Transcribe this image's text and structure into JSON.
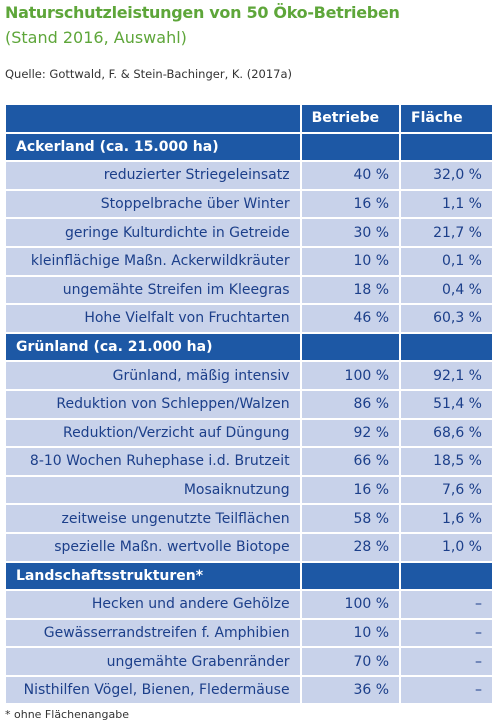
{
  "header": {
    "title": "Naturschutzleistungen von 50 Öko-Betrieben",
    "subtitle": "(Stand 2016, Auswahl)",
    "source": "Quelle: Gottwald, F. & Stein-Bachinger, K. (2017a)"
  },
  "table": {
    "columns": [
      "Betriebe",
      "Fläche"
    ],
    "sections": [
      {
        "title": "Ackerland (ca. 15.000 ha)",
        "rows": [
          [
            "reduzierter Striegeleinsatz",
            "40 %",
            "32,0 %"
          ],
          [
            "Stoppelbrache über Winter",
            "16 %",
            "1,1 %"
          ],
          [
            "geringe Kulturdichte in Getreide",
            "30 %",
            "21,7 %"
          ],
          [
            "kleinflächige Maßn. Ackerwildkräuter",
            "10 %",
            "0,1 %"
          ],
          [
            "ungemähte Streifen im Kleegras",
            "18 %",
            "0,4 %"
          ],
          [
            "Hohe Vielfalt von Fruchtarten",
            "46 %",
            "60,3 %"
          ]
        ]
      },
      {
        "title": "Grünland (ca. 21.000 ha)",
        "rows": [
          [
            "Grünland, mäßig intensiv",
            "100 %",
            "92,1 %"
          ],
          [
            "Reduktion von Schleppen/Walzen",
            "86 %",
            "51,4 %"
          ],
          [
            "Reduktion/Verzicht auf Düngung",
            "92 %",
            "68,6 %"
          ],
          [
            "8-10 Wochen Ruhephase i.d. Brutzeit",
            "66 %",
            "18,5 %"
          ],
          [
            "Mosaiknutzung",
            "16 %",
            "7,6 %"
          ],
          [
            "zeitweise ungenutzte Teilflächen",
            "58 %",
            "1,6 %"
          ],
          [
            "spezielle Maßn. wertvolle Biotope",
            "28 %",
            "1,0 %"
          ]
        ]
      },
      {
        "title": "Landschaftsstrukturen*",
        "rows": [
          [
            "Hecken und andere Gehölze",
            "100 %",
            "–"
          ],
          [
            "Gewässerrandstreifen f. Amphibien",
            "10 %",
            "–"
          ],
          [
            "ungemähte Grabenränder",
            "70 %",
            "–"
          ],
          [
            "Nisthilfen Vögel, Bienen, Fledermäuse",
            "36 %",
            "–"
          ]
        ]
      }
    ]
  },
  "footnote": "* ohne Flächenangabe"
}
